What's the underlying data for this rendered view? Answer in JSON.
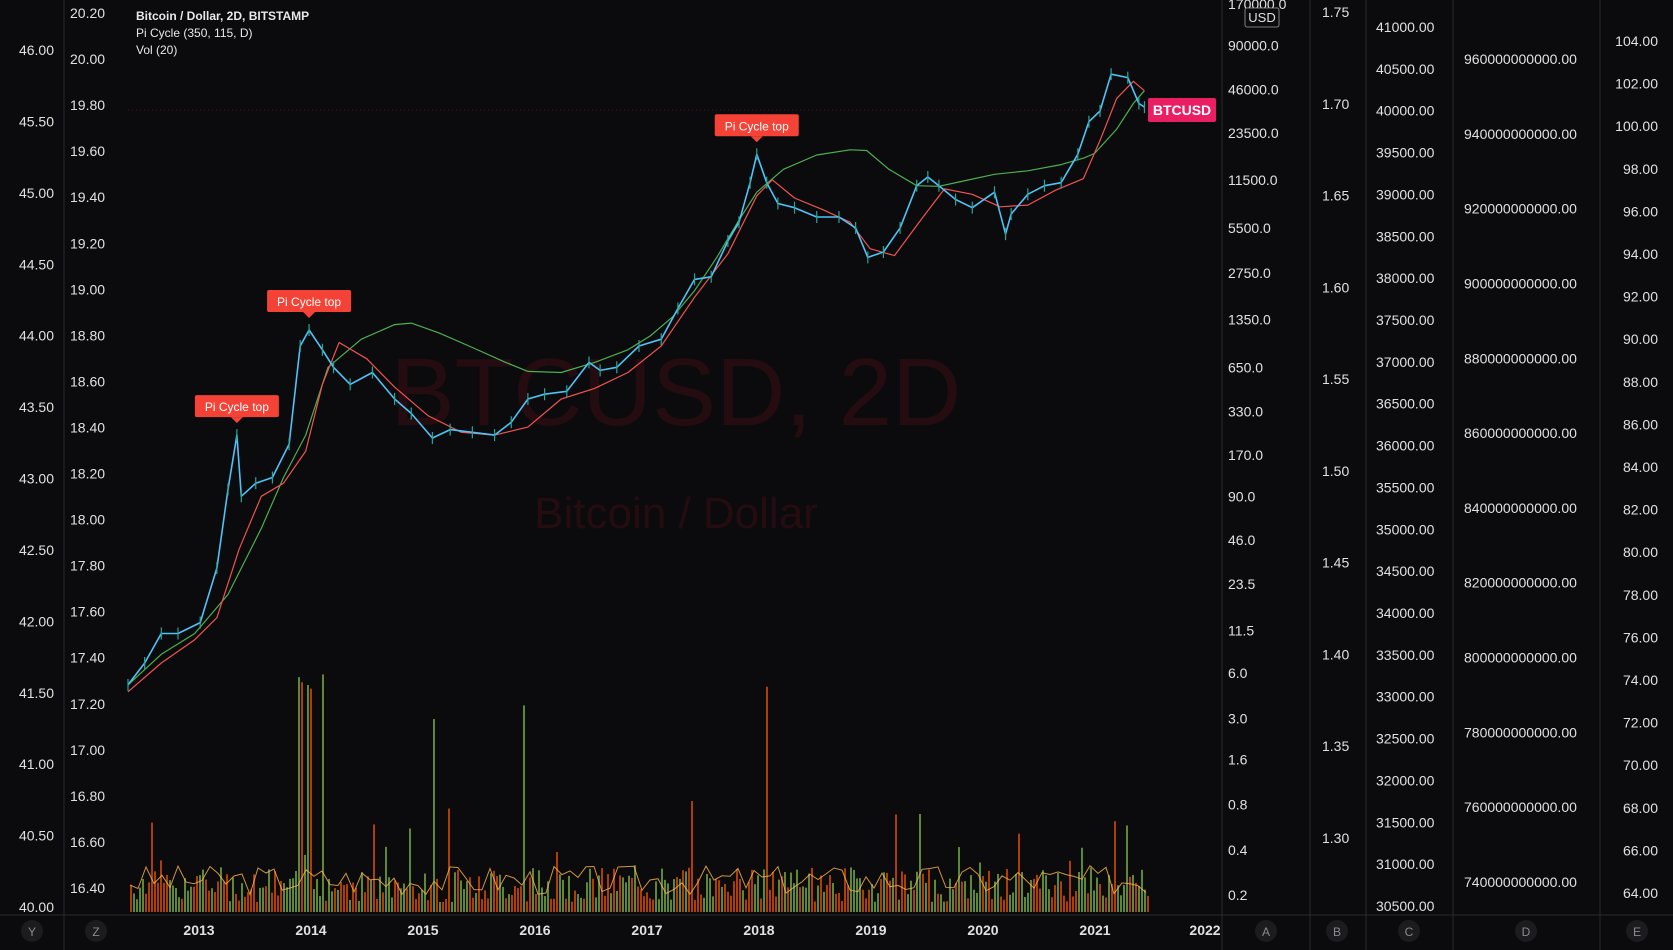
{
  "header": {
    "symbol_line": "Bitcoin / Dollar, 2D, BITSTAMP",
    "pi_cycle_line": "Pi Cycle (350, 115, D)",
    "volume_line": "Vol (20)"
  },
  "watermark": {
    "symbol": "BTCUSD, 2D",
    "name": "Bitcoin / Dollar"
  },
  "price_tag": {
    "label": "BTCUSD",
    "color": "#e91e63"
  },
  "currency_label": "USD",
  "colors": {
    "background": "#0b0b0d",
    "candle_up": "#26a69a",
    "candle": "#4fc3f7",
    "ma_350x2": "#4caf50",
    "ma_111": "#ef5350",
    "signal_label": "#f44336",
    "volume_up": "#7cb342",
    "volume_down": "#e65100",
    "volume_ma": "#ffb74d",
    "axis_text": "#e0e0e0",
    "divider": "#2a2a2e"
  },
  "chart_data": {
    "type": "line",
    "x_axis": {
      "labels": [
        "2013",
        "2014",
        "2015",
        "2016",
        "2017",
        "2018",
        "2019",
        "2020",
        "2021",
        "2022"
      ],
      "range": [
        2012.3,
        2021.5
      ]
    },
    "price_axis": {
      "scale": "log",
      "ticks": [
        "170000.0",
        "90000.0",
        "46000.0",
        "23500.0",
        "11500.0",
        "5500.0",
        "2750.0",
        "1350.0",
        "650.0",
        "330.0",
        "170.0",
        "90.0",
        "46.0",
        "23.5",
        "11.5",
        "6.0",
        "3.0",
        "1.6",
        "0.8",
        "0.4",
        "0.2"
      ]
    },
    "left_axis_1": {
      "ticks": [
        "46.00",
        "45.50",
        "45.00",
        "44.50",
        "44.00",
        "43.50",
        "43.00",
        "42.50",
        "42.00",
        "41.50",
        "41.00",
        "40.50",
        "40.00"
      ]
    },
    "left_axis_2": {
      "ticks": [
        "20.20",
        "20.00",
        "19.80",
        "19.60",
        "19.40",
        "19.20",
        "19.00",
        "18.80",
        "18.60",
        "18.40",
        "18.20",
        "18.00",
        "17.80",
        "17.60",
        "17.40",
        "17.20",
        "17.00",
        "16.80",
        "16.60",
        "16.40"
      ]
    },
    "axis_b": {
      "ticks": [
        "1.75",
        "1.70",
        "1.65",
        "1.60",
        "1.55",
        "1.50",
        "1.45",
        "1.40",
        "1.35",
        "1.30"
      ]
    },
    "axis_c": {
      "ticks": [
        "41000.00",
        "40500.00",
        "40000.00",
        "39500.00",
        "39000.00",
        "38500.00",
        "38000.00",
        "37500.00",
        "37000.00",
        "36500.00",
        "36000.00",
        "35500.00",
        "35000.00",
        "34500.00",
        "34000.00",
        "33500.00",
        "33000.00",
        "32500.00",
        "32000.00",
        "31500.00",
        "31000.00",
        "30500.00"
      ]
    },
    "axis_d": {
      "ticks": [
        "960000000000.00",
        "940000000000.00",
        "920000000000.00",
        "900000000000.00",
        "880000000000.00",
        "860000000000.00",
        "840000000000.00",
        "820000000000.00",
        "800000000000.00",
        "780000000000.00",
        "760000000000.00",
        "740000000000.00"
      ]
    },
    "axis_e": {
      "ticks": [
        "104.00",
        "102.00",
        "100.00",
        "98.00",
        "96.00",
        "94.00",
        "92.00",
        "90.00",
        "88.00",
        "86.00",
        "84.00",
        "82.00",
        "80.00",
        "78.00",
        "76.00",
        "74.00",
        "72.00",
        "70.00",
        "68.00",
        "66.00",
        "64.00"
      ]
    },
    "bottom_letters": [
      "Y",
      "Z",
      "A",
      "B",
      "C",
      "D",
      "E"
    ],
    "series": [
      {
        "key": "price",
        "x": [
          2012.3,
          2012.45,
          2012.6,
          2012.75,
          2012.95,
          2013.1,
          2013.2,
          2013.28,
          2013.32,
          2013.45,
          2013.6,
          2013.75,
          2013.85,
          2013.93,
          2014.05,
          2014.15,
          2014.3,
          2014.5,
          2014.7,
          2014.85,
          2015.04,
          2015.2,
          2015.4,
          2015.6,
          2015.75,
          2015.9,
          2016.05,
          2016.25,
          2016.45,
          2016.55,
          2016.7,
          2016.9,
          2017.1,
          2017.25,
          2017.4,
          2017.55,
          2017.7,
          2017.8,
          2017.9,
          2017.96,
          2018.05,
          2018.15,
          2018.3,
          2018.5,
          2018.7,
          2018.85,
          2018.96,
          2019.1,
          2019.25,
          2019.4,
          2019.5,
          2019.6,
          2019.75,
          2019.9,
          2020.1,
          2020.2,
          2020.25,
          2020.4,
          2020.55,
          2020.7,
          2020.85,
          2020.95,
          2021.05,
          2021.15,
          2021.3,
          2021.4,
          2021.45
        ],
        "y": [
          5,
          7,
          11,
          11,
          13,
          30,
          100,
          230,
          90,
          110,
          120,
          200,
          900,
          1150,
          850,
          650,
          500,
          600,
          400,
          320,
          220,
          250,
          240,
          230,
          280,
          400,
          430,
          450,
          700,
          620,
          650,
          900,
          1000,
          1600,
          2500,
          2600,
          4500,
          6000,
          11000,
          17000,
          11000,
          8000,
          7500,
          6500,
          6500,
          5500,
          3500,
          3800,
          5500,
          10500,
          12000,
          10500,
          8500,
          7500,
          9500,
          5000,
          6800,
          9200,
          10500,
          11000,
          17000,
          28000,
          33000,
          58000,
          55000,
          37000,
          35000
        ]
      },
      {
        "key": "ma_350x2",
        "x": [
          2012.3,
          2012.6,
          2012.9,
          2013.2,
          2013.5,
          2013.7,
          2013.9,
          2014.1,
          2014.4,
          2014.7,
          2014.85,
          2015.1,
          2015.4,
          2015.7,
          2015.9,
          2016.2,
          2016.5,
          2016.8,
          2017.0,
          2017.2,
          2017.4,
          2017.6,
          2017.8,
          2017.96,
          2018.2,
          2018.5,
          2018.8,
          2018.95,
          2019.15,
          2019.4,
          2019.6,
          2019.8,
          2020.1,
          2020.4,
          2020.7,
          2020.9,
          2021.0,
          2021.2,
          2021.35,
          2021.45
        ],
        "y": [
          5,
          8,
          11,
          20,
          55,
          120,
          230,
          650,
          1000,
          1250,
          1280,
          1100,
          880,
          700,
          610,
          600,
          700,
          850,
          1050,
          1400,
          2100,
          3500,
          6200,
          9500,
          13500,
          16800,
          18200,
          18000,
          13500,
          10500,
          10400,
          11200,
          12500,
          13200,
          14500,
          16000,
          17200,
          25000,
          37000,
          45000
        ]
      },
      {
        "key": "ma_111",
        "x": [
          2012.3,
          2012.6,
          2012.9,
          2013.1,
          2013.3,
          2013.5,
          2013.7,
          2013.9,
          2014.05,
          2014.2,
          2014.45,
          2014.7,
          2015.0,
          2015.3,
          2015.6,
          2015.9,
          2016.2,
          2016.5,
          2016.8,
          2017.1,
          2017.4,
          2017.7,
          2017.96,
          2018.1,
          2018.3,
          2018.55,
          2018.8,
          2018.98,
          2019.2,
          2019.45,
          2019.65,
          2019.9,
          2020.15,
          2020.4,
          2020.65,
          2020.9,
          2021.05,
          2021.2,
          2021.35,
          2021.45
        ],
        "y": [
          4.5,
          7,
          10,
          14,
          40,
          90,
          110,
          180,
          500,
          950,
          740,
          480,
          310,
          240,
          230,
          260,
          400,
          470,
          600,
          900,
          1900,
          3700,
          9000,
          11500,
          8700,
          7300,
          6000,
          4000,
          3600,
          6400,
          10000,
          9200,
          7600,
          7800,
          9800,
          11700,
          21000,
          40000,
          52000,
          45000
        ]
      }
    ],
    "signals": [
      {
        "label": "Pi Cycle top",
        "x": 2013.28,
        "y": 230
      },
      {
        "label": "Pi Cycle top",
        "x": 2013.93,
        "y": 1150
      },
      {
        "label": "Pi Cycle top",
        "x": 2017.96,
        "y": 17000
      }
    ]
  }
}
